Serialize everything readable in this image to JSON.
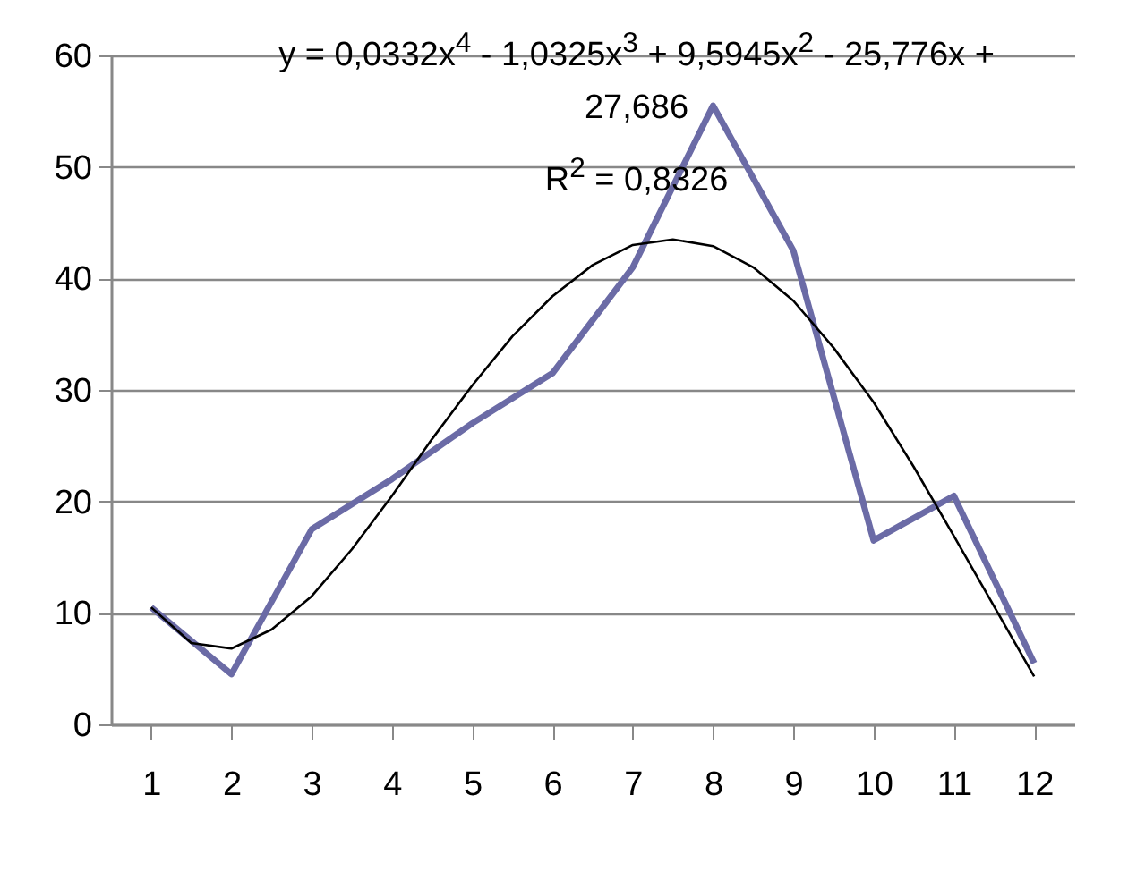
{
  "chart_data": {
    "type": "line",
    "x": [
      1,
      2,
      3,
      4,
      5,
      6,
      7,
      8,
      9,
      10,
      11,
      12
    ],
    "series": [
      {
        "color": "#6b6ba6",
        "values": [
          10.5,
          4.5,
          17.5,
          22,
          27,
          31.5,
          41,
          55.5,
          42.5,
          16.5,
          20.5,
          5.5
        ]
      },
      {
        "type": "line",
        "color": "#000000",
        "x": [
          1,
          1.5,
          2,
          2.5,
          3,
          3.5,
          4,
          4.5,
          5,
          5.5,
          6,
          6.5,
          7,
          7.5,
          8,
          8.5,
          9,
          9.5,
          10,
          10.5,
          11,
          11.5,
          12
        ],
        "values": [
          10.5,
          7.3,
          6.8,
          8.5,
          11.5,
          15.7,
          20.5,
          25.6,
          30.4,
          34.8,
          38.4,
          41.2,
          43,
          43.5,
          42.9,
          41,
          38,
          33.8,
          28.9,
          23.1,
          16.9,
          10.6,
          4.3
        ]
      }
    ],
    "xlim": [
      0.5,
      12.5
    ],
    "xticks": [
      1,
      2,
      3,
      4,
      5,
      6,
      7,
      8,
      9,
      10,
      11,
      12
    ],
    "ylim": [
      0,
      60
    ],
    "yticks": [
      0,
      10,
      20,
      30,
      40,
      50,
      60
    ],
    "grid": "y",
    "annotations": [
      "y = 0,0332x$^{4}$ - 1,0325x$^{3}$ + 9,5945x$^{2}$ - 25,776x + 27,686",
      "R$^{2}$ = 0,8326"
    ]
  }
}
